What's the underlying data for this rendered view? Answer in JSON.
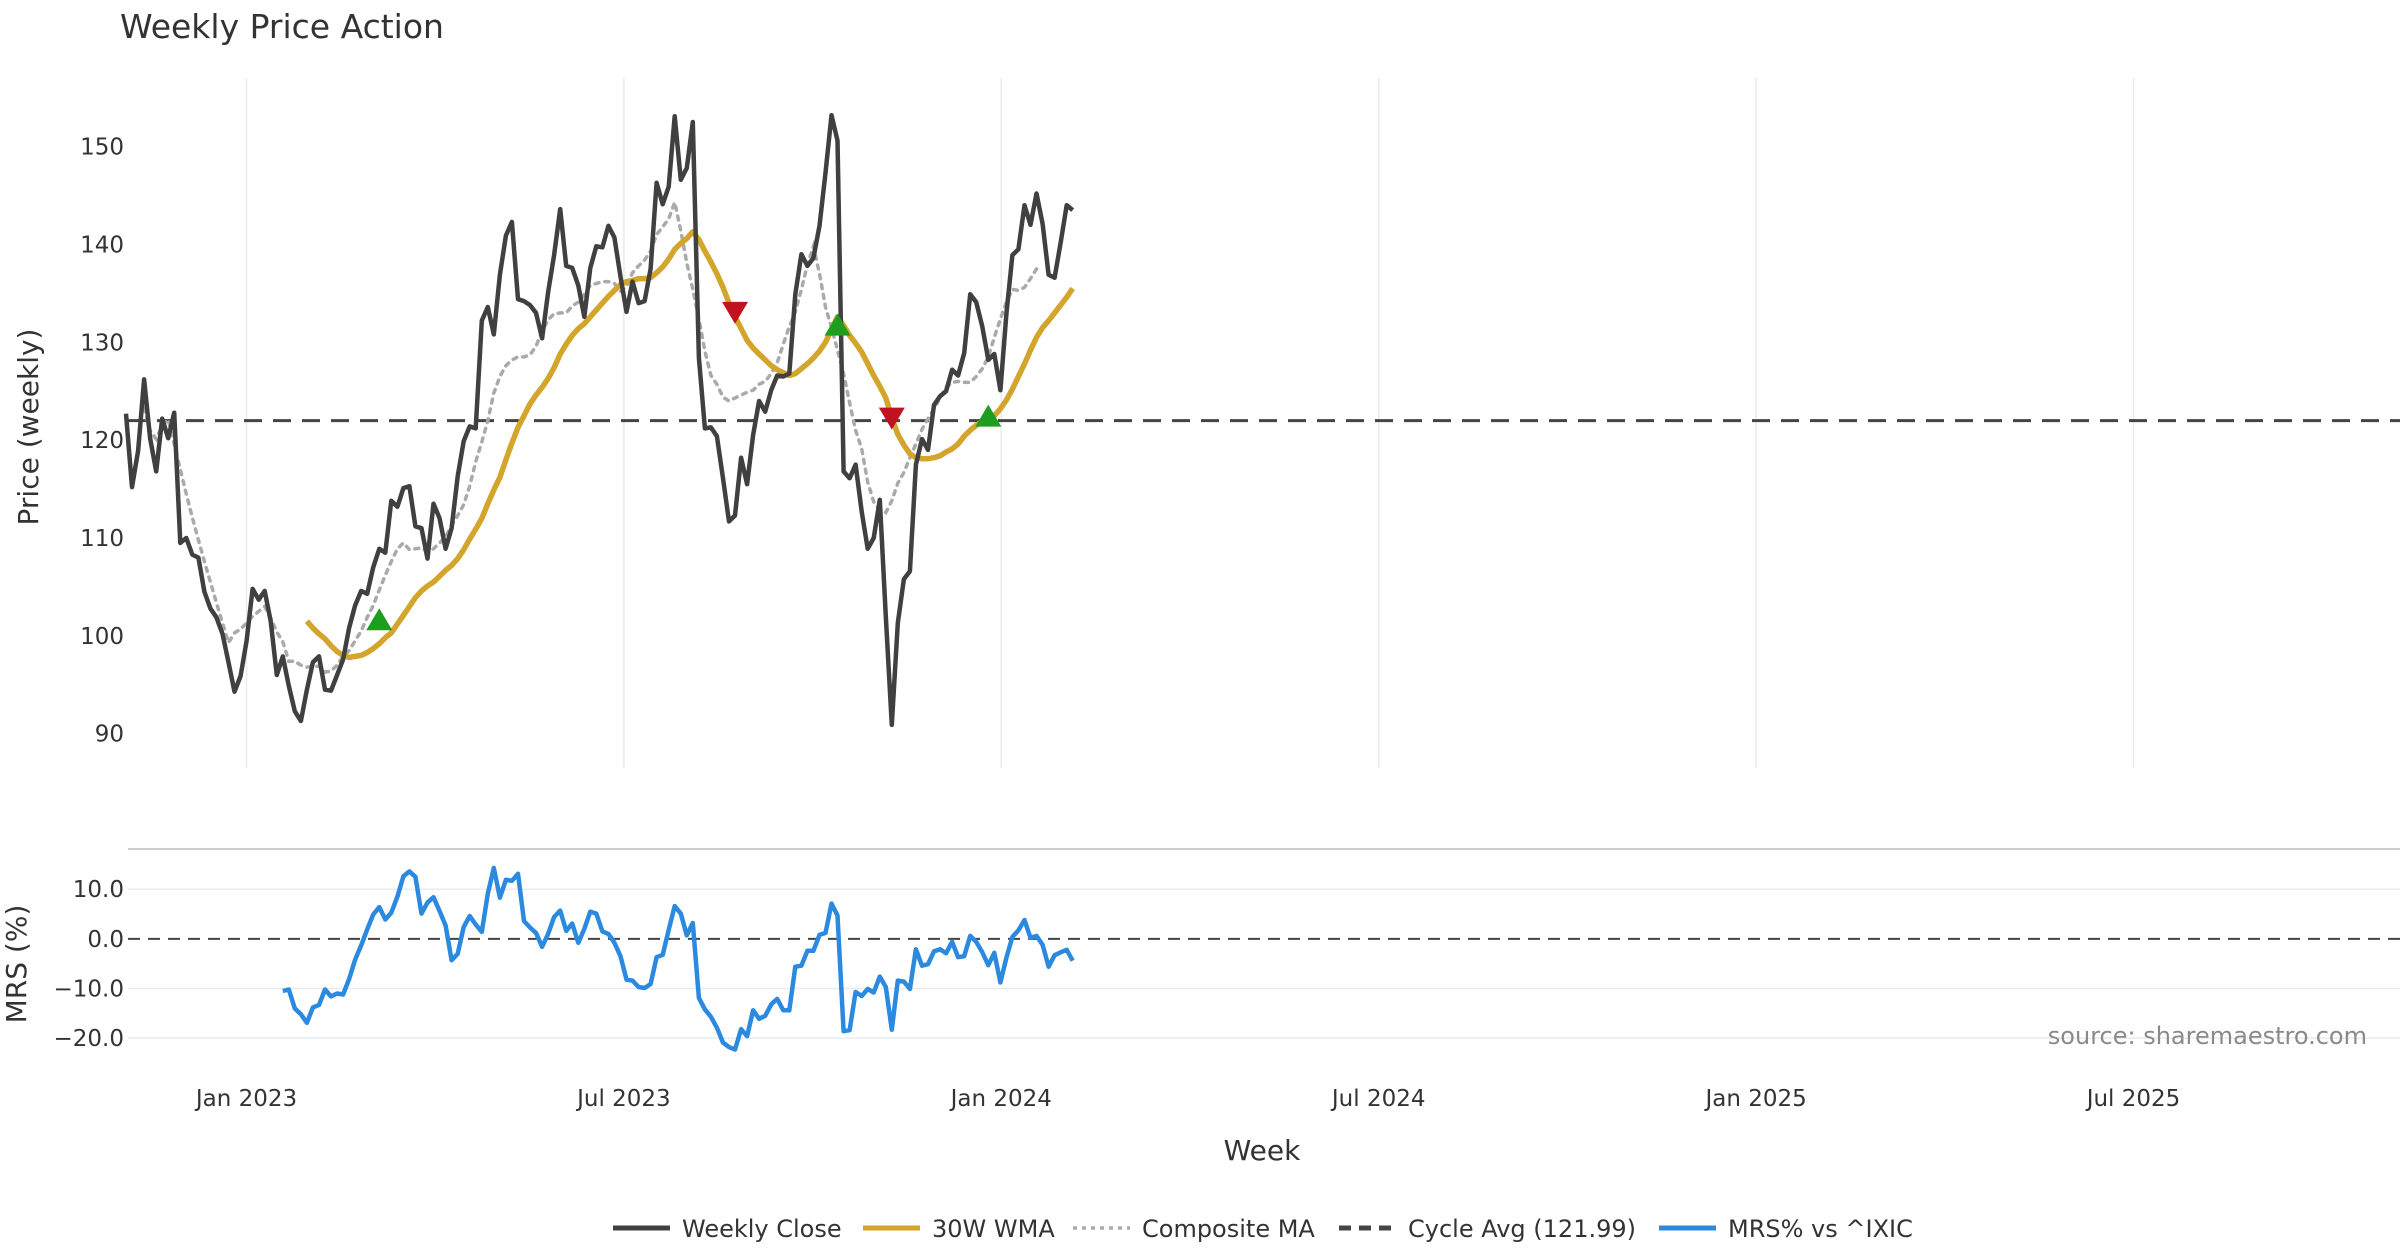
{
  "chart_data": {
    "type": "line",
    "title": "Weekly Price Action",
    "xlabel": "Week",
    "colors": {
      "weekly_close": "#404040",
      "wma_30": "#d4a52c",
      "composite_ma": "#aaaaaa",
      "cycle_avg": "#444444",
      "mrs": "#2b8ae0",
      "buy_marker": "#1e9e1e",
      "sell_marker": "#c1121f",
      "grid": "#e6ecef"
    },
    "x_ticks": [
      "Jan 2023",
      "Jul 2023",
      "Jan 2024",
      "Jul 2024",
      "Jan 2025",
      "Jul 2025"
    ],
    "source": "source: sharemaestro.com",
    "legend": [
      {
        "label": "Weekly Close",
        "style": "solid",
        "color": "#404040"
      },
      {
        "label": "30W WMA",
        "style": "solid",
        "color": "#d4a52c"
      },
      {
        "label": "Composite MA",
        "style": "dotted",
        "color": "#aaaaaa"
      },
      {
        "label": "Cycle Avg (121.99)",
        "style": "dashed",
        "color": "#444444"
      },
      {
        "label": "MRS% vs ^IXIC",
        "style": "solid",
        "color": "#2b8ae0"
      }
    ],
    "price_panel": {
      "ylabel": "Price (weekly)",
      "ylim": [
        86.5,
        157
      ],
      "yticks": [
        90,
        100,
        110,
        120,
        130,
        140,
        150
      ],
      "cycle_avg": 121.99,
      "weekly_close": [
        122.7,
        115.2,
        118.9,
        126.2,
        120.2,
        116.8,
        122.2,
        120.2,
        122.8,
        109.5,
        110.0,
        108.3,
        108.0,
        104.5,
        102.8,
        101.9,
        100.2,
        97.3,
        94.3,
        95.9,
        99.5,
        104.8,
        103.7,
        104.6,
        101.5,
        96.0,
        97.9,
        94.9,
        92.3,
        91.3,
        94.5,
        97.3,
        97.9,
        94.5,
        94.4,
        96.0,
        97.6,
        100.8,
        103.1,
        104.6,
        104.3,
        107.0,
        108.9,
        108.5,
        113.8,
        113.2,
        115.1,
        115.3,
        111.2,
        111.0,
        107.9,
        113.5,
        112.0,
        108.9,
        111.0,
        116.3,
        119.9,
        121.4,
        121.2,
        132.2,
        133.6,
        130.8,
        136.9,
        140.9,
        142.3,
        134.4,
        134.2,
        133.8,
        133.0,
        130.4,
        135.1,
        138.9,
        143.6,
        137.8,
        137.6,
        135.8,
        132.6,
        137.6,
        139.8,
        139.7,
        141.9,
        140.7,
        136.7,
        133.1,
        136.2,
        134.0,
        134.2,
        137.5,
        146.3,
        144.1,
        145.9,
        153.1,
        146.6,
        147.8,
        152.5,
        128.4,
        121.2,
        121.3,
        120.4,
        116.1,
        111.7,
        112.3,
        118.2,
        115.5,
        120.5,
        124.0,
        122.9,
        125.1,
        126.6,
        126.5,
        126.8,
        134.9,
        139.0,
        137.8,
        138.6,
        141.9,
        147.3,
        153.2,
        150.6,
        116.8,
        116.1,
        117.5,
        112.7,
        108.9,
        110.0,
        113.9,
        102.0,
        90.9,
        101.3,
        105.8,
        106.6,
        117.5,
        120.1,
        119.0,
        123.6,
        124.5,
        125.0,
        127.2,
        126.6,
        128.9,
        134.9,
        134.1,
        131.6,
        128.2,
        128.8,
        125.1,
        132.9,
        138.9,
        139.5,
        144.0,
        142.0,
        145.2,
        142.1,
        136.9,
        136.6,
        140.2,
        144.0,
        143.5
      ],
      "composite_ma_start_week": 3,
      "composite_ma": [
        123.3,
        121.0,
        120.1,
        121.5,
        122.1,
        119.6,
        117.0,
        114.5,
        112.1,
        109.8,
        107.6,
        105.5,
        103.4,
        101.3,
        99.3,
        100.3,
        100.7,
        101.3,
        102.0,
        102.5,
        103.0,
        101.8,
        100.4,
        99.4,
        97.4,
        97.4,
        97.0,
        96.8,
        96.9,
        96.9,
        96.3,
        96.4,
        97.0,
        97.9,
        98.5,
        99.5,
        100.5,
        101.9,
        103.1,
        104.7,
        106.2,
        107.6,
        108.9,
        109.5,
        108.8,
        108.9,
        109.0,
        108.6,
        108.9,
        109.5,
        110.1,
        111.3,
        112.3,
        113.4,
        115.3,
        117.8,
        119.8,
        122.0,
        124.8,
        126.5,
        127.6,
        128.2,
        128.5,
        128.5,
        128.7,
        129.6,
        131.1,
        132.3,
        132.9,
        133.0,
        133.0,
        133.7,
        134.1,
        134.9,
        135.8,
        136.0,
        136.2,
        136.2,
        136.0,
        135.2,
        135.7,
        137.1,
        137.8,
        138.4,
        139.3,
        141.0,
        141.8,
        142.6,
        144.3,
        141.4,
        138.1,
        135.4,
        132.4,
        129.1,
        126.6,
        125.7,
        124.4,
        124.0,
        124.3,
        124.6,
        124.9,
        125.1,
        125.7,
        126.0,
        126.8,
        127.9,
        129.8,
        131.6,
        133.1,
        135.4,
        137.9,
        139.8,
        137.0,
        133.6,
        131.5,
        129.2,
        126.8,
        123.8,
        121.0,
        119.1,
        115.7,
        113.7,
        112.9,
        112.6,
        113.8,
        115.6,
        116.7,
        118.2,
        119.6,
        121.1,
        122.2,
        123.2,
        124.3,
        125.4,
        125.9,
        126.0,
        125.9,
        125.9,
        126.5,
        127.3,
        128.5,
        130.5,
        132.4,
        134.1,
        135.4,
        135.3,
        135.6,
        136.5,
        137.5
      ],
      "wma_start_week": 30,
      "wma_30": [
        101.5,
        100.8,
        100.2,
        99.7,
        99.0,
        98.4,
        98.0,
        97.8,
        97.9,
        98.0,
        98.3,
        98.7,
        99.2,
        99.8,
        100.3,
        101.2,
        102.1,
        103.0,
        103.9,
        104.6,
        105.1,
        105.5,
        106.1,
        106.7,
        107.2,
        107.9,
        108.8,
        109.9,
        110.9,
        112.0,
        113.5,
        114.9,
        116.2,
        118.0,
        119.7,
        121.3,
        122.5,
        123.7,
        124.6,
        125.4,
        126.3,
        127.4,
        128.8,
        129.8,
        130.7,
        131.4,
        131.9,
        132.6,
        133.3,
        134.0,
        134.7,
        135.3,
        135.9,
        136.2,
        136.3,
        136.5,
        136.5,
        136.6,
        137.1,
        137.7,
        138.5,
        139.5,
        140.1,
        140.6,
        141.3,
        140.5,
        139.3,
        138.2,
        137.0,
        135.6,
        134.0,
        132.6,
        131.4,
        130.2,
        129.4,
        128.8,
        128.2,
        127.6,
        127.2,
        126.9,
        126.6,
        126.8,
        127.3,
        127.8,
        128.4,
        129.1,
        130.0,
        131.3,
        132.6,
        131.7,
        130.7,
        129.9,
        129.0,
        127.8,
        126.6,
        125.5,
        124.3,
        122.3,
        120.6,
        119.5,
        118.6,
        118.2,
        118.1,
        118.1,
        118.2,
        118.4,
        118.8,
        119.1,
        119.6,
        120.4,
        121.0,
        121.5,
        121.9,
        122.2,
        122.5,
        123.2,
        124.1,
        125.2,
        126.5,
        127.8,
        129.2,
        130.5,
        131.5,
        132.2,
        133.0,
        133.8,
        134.6,
        135.5
      ],
      "buy_markers": [
        {
          "week": 42,
          "value": 101.6
        },
        {
          "week": 118,
          "value": 131.7
        },
        {
          "week": 143,
          "value": 122.4
        }
      ],
      "sell_markers": [
        {
          "week": 101,
          "value": 133.1
        },
        {
          "week": 127,
          "value": 122.3
        }
      ]
    },
    "mrs_panel": {
      "ylabel": "MRS (%)",
      "ylim": [
        -24.0,
        17.5
      ],
      "yticks": [
        10.0,
        0.0,
        -10.0,
        -20.0
      ],
      "ytick_labels": [
        "10.0",
        "0.0",
        "−10.0",
        "−20.0"
      ],
      "start_week": 26,
      "mrs": [
        -10.5,
        -10.2,
        -14.0,
        -15.2,
        -16.9,
        -13.8,
        -13.3,
        -10.2,
        -11.6,
        -11.0,
        -11.2,
        -8.1,
        -4.2,
        -1.3,
        1.9,
        4.9,
        6.4,
        3.9,
        5.3,
        8.5,
        12.6,
        13.6,
        12.5,
        5.1,
        7.3,
        8.4,
        5.6,
        2.7,
        -4.3,
        -3.0,
        2.4,
        4.6,
        2.9,
        1.4,
        9.1,
        14.3,
        8.3,
        11.9,
        11.7,
        13.1,
        3.6,
        2.3,
        1.2,
        -1.6,
        1.0,
        4.4,
        5.7,
        1.6,
        3.1,
        -0.8,
        2.0,
        5.5,
        5.1,
        1.5,
        1.0,
        -0.8,
        -3.5,
        -8.2,
        -8.4,
        -9.7,
        -9.9,
        -9.1,
        -3.7,
        -3.2,
        1.8,
        6.6,
        5.1,
        0.7,
        3.2,
        -11.9,
        -14.2,
        -15.7,
        -17.9,
        -20.9,
        -21.8,
        -22.3,
        -18.2,
        -19.6,
        -14.4,
        -16.1,
        -15.5,
        -13.2,
        -12.1,
        -14.4,
        -14.4,
        -5.6,
        -5.4,
        -2.4,
        -2.4,
        0.8,
        1.2,
        7.1,
        4.7,
        -18.6,
        -18.4,
        -10.7,
        -11.5,
        -10.1,
        -10.8,
        -7.6,
        -9.7,
        -18.3,
        -8.4,
        -8.6,
        -10.1,
        -2.1,
        -5.4,
        -5.1,
        -2.5,
        -2.1,
        -2.9,
        -0.6,
        -3.7,
        -3.5,
        0.6,
        -0.6,
        -2.7,
        -5.3,
        -2.8,
        -8.8,
        -3.8,
        0.4,
        1.7,
        3.8,
        0.2,
        0.6,
        -1.2,
        -5.6,
        -3.3,
        -2.7,
        -2.2,
        -4.4
      ]
    }
  }
}
